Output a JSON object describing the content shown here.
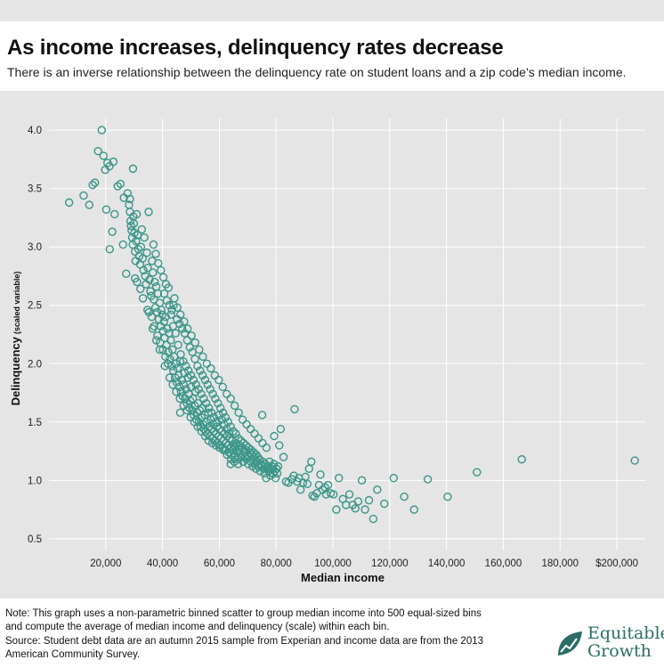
{
  "header": {
    "title": "As income increases, delinquency rates decrease",
    "subtitle": "There is an inverse relationship between the delinquency rate on student loans and a zip code’s median income."
  },
  "footer": {
    "note1": "Note: This graph uses a non-parametric binned scatter to group median income into 500 equal-sized bins and compute the average of median income and delinquency (scale) within each bin.",
    "note2": "Source: Student debt data are an autumn 2015 sample from Experian and income data are from the 2013 American Community Survey.",
    "logo_line1": "Equitable",
    "logo_line2": "Growth",
    "logo_color": "#2c6e66",
    "logo_icon": "growth-leaf-icon"
  },
  "chart_data": {
    "type": "scatter",
    "xlabel": "Median income",
    "ylabel": "Delinquency",
    "ylabel_suffix": "(scaled variable)",
    "xlim": [
      0,
      210000
    ],
    "ylim": [
      0.4,
      4.1
    ],
    "x_ticks": [
      20000,
      40000,
      60000,
      80000,
      100000,
      120000,
      140000,
      160000,
      180000,
      200000
    ],
    "x_tick_labels": [
      "20,000",
      "40,000",
      "60,000",
      "80,000",
      "100,000",
      "120,000",
      "140,000",
      "160,000",
      "180,000",
      "$200,000"
    ],
    "y_ticks": [
      0.5,
      1.0,
      1.5,
      2.0,
      2.5,
      3.0,
      3.5,
      4.0
    ],
    "y_tick_labels": [
      "0.5",
      "1.0",
      "1.5",
      "2.0",
      "2.5",
      "3.0",
      "3.5",
      "4.0"
    ],
    "grid": true,
    "marker_color": "#3a9688",
    "points": [
      [
        7100,
        3.38
      ],
      [
        12200,
        3.44
      ],
      [
        14200,
        3.36
      ],
      [
        15400,
        3.53
      ],
      [
        16200,
        3.55
      ],
      [
        17300,
        3.82
      ],
      [
        18600,
        4.0
      ],
      [
        19200,
        3.78
      ],
      [
        19800,
        3.66
      ],
      [
        20600,
        3.72
      ],
      [
        21300,
        3.69
      ],
      [
        22700,
        3.73
      ],
      [
        24200,
        3.52
      ],
      [
        25200,
        3.54
      ],
      [
        26400,
        3.42
      ],
      [
        27700,
        3.46
      ],
      [
        28500,
        3.41
      ],
      [
        29600,
        3.67
      ],
      [
        20200,
        3.32
      ],
      [
        21400,
        2.98
      ],
      [
        22300,
        3.13
      ],
      [
        23100,
        3.28
      ],
      [
        26100,
        3.02
      ],
      [
        27200,
        2.77
      ],
      [
        28200,
        3.36
      ],
      [
        28500,
        3.3
      ],
      [
        28700,
        3.22
      ],
      [
        28900,
        3.18
      ],
      [
        29100,
        3.14
      ],
      [
        29300,
        3.08
      ],
      [
        29500,
        3.02
      ],
      [
        29700,
        3.26
      ],
      [
        29900,
        3.2
      ],
      [
        30100,
        3.12
      ],
      [
        30300,
        2.96
      ],
      [
        30500,
        2.88
      ],
      [
        30700,
        3.05
      ],
      [
        30900,
        3.28
      ],
      [
        31200,
        3.1
      ],
      [
        31500,
        2.98
      ],
      [
        31800,
        2.92
      ],
      [
        32100,
        2.85
      ],
      [
        32400,
        3.0
      ],
      [
        32700,
        3.15
      ],
      [
        33000,
        2.9
      ],
      [
        33300,
        2.8
      ],
      [
        33600,
        3.08
      ],
      [
        33900,
        2.75
      ],
      [
        34200,
        2.68
      ],
      [
        34500,
        2.95
      ],
      [
        34800,
        2.82
      ],
      [
        35100,
        3.3
      ],
      [
        35400,
        2.72
      ],
      [
        35700,
        2.62
      ],
      [
        36000,
        2.58
      ],
      [
        36300,
        2.88
      ],
      [
        36600,
        2.78
      ],
      [
        36900,
        2.55
      ],
      [
        37200,
        2.7
      ],
      [
        37500,
        2.48
      ],
      [
        37800,
        2.66
      ],
      [
        38100,
        2.44
      ],
      [
        38400,
        2.6
      ],
      [
        38700,
        2.38
      ],
      [
        39000,
        2.52
      ],
      [
        39300,
        2.32
      ],
      [
        39600,
        2.46
      ],
      [
        39900,
        2.42
      ],
      [
        40200,
        2.28
      ],
      [
        40500,
        2.36
      ],
      [
        40800,
        2.22
      ],
      [
        41100,
        2.4
      ],
      [
        41400,
        2.16
      ],
      [
        41700,
        2.3
      ],
      [
        42000,
        2.1
      ],
      [
        42300,
        2.26
      ],
      [
        42600,
        2.04
      ],
      [
        42900,
        2.2
      ],
      [
        43200,
        1.98
      ],
      [
        43500,
        2.12
      ],
      [
        43800,
        1.94
      ],
      [
        44100,
        2.06
      ],
      [
        44400,
        1.88
      ],
      [
        44700,
        2.0
      ],
      [
        45000,
        1.84
      ],
      [
        45300,
        1.96
      ],
      [
        45600,
        1.9
      ],
      [
        45900,
        1.8
      ],
      [
        46200,
        2.02
      ],
      [
        46500,
        1.76
      ],
      [
        46800,
        1.86
      ],
      [
        47100,
        1.72
      ],
      [
        47400,
        1.82
      ],
      [
        47700,
        1.92
      ],
      [
        48000,
        1.7
      ],
      [
        48300,
        1.78
      ],
      [
        48600,
        1.66
      ],
      [
        48900,
        1.88
      ],
      [
        49200,
        1.74
      ],
      [
        49500,
        1.62
      ],
      [
        49800,
        1.68
      ],
      [
        50100,
        1.8
      ],
      [
        50400,
        1.6
      ],
      [
        50700,
        1.7
      ],
      [
        51000,
        1.56
      ],
      [
        51300,
        1.64
      ],
      [
        51600,
        1.76
      ],
      [
        51900,
        1.52
      ],
      [
        52200,
        1.58
      ],
      [
        52500,
        1.66
      ],
      [
        52800,
        1.5
      ],
      [
        53100,
        1.6
      ],
      [
        53400,
        1.46
      ],
      [
        53700,
        1.54
      ],
      [
        54000,
        1.62
      ],
      [
        54300,
        1.48
      ],
      [
        54600,
        1.44
      ],
      [
        54900,
        1.56
      ],
      [
        55200,
        1.42
      ],
      [
        55500,
        1.5
      ],
      [
        55800,
        1.4
      ],
      [
        56100,
        1.58
      ],
      [
        56400,
        1.46
      ],
      [
        56700,
        1.38
      ],
      [
        57000,
        1.52
      ],
      [
        57300,
        1.44
      ],
      [
        57600,
        1.36
      ],
      [
        57900,
        1.48
      ],
      [
        58200,
        1.42
      ],
      [
        58500,
        1.34
      ],
      [
        58800,
        1.4
      ],
      [
        59100,
        1.46
      ],
      [
        59400,
        1.32
      ],
      [
        59700,
        1.38
      ],
      [
        60000,
        1.44
      ],
      [
        60300,
        1.3
      ],
      [
        60600,
        1.36
      ],
      [
        60900,
        1.42
      ],
      [
        61200,
        1.28
      ],
      [
        61500,
        1.34
      ],
      [
        61800,
        1.4
      ],
      [
        62100,
        1.26
      ],
      [
        62400,
        1.32
      ],
      [
        62700,
        1.38
      ],
      [
        63000,
        1.3
      ],
      [
        63300,
        1.24
      ],
      [
        63600,
        1.36
      ],
      [
        63900,
        1.28
      ],
      [
        64200,
        1.22
      ],
      [
        64500,
        1.34
      ],
      [
        64800,
        1.26
      ],
      [
        65100,
        1.3
      ],
      [
        65400,
        1.2
      ],
      [
        65700,
        1.28
      ],
      [
        66000,
        1.32
      ],
      [
        66300,
        1.24
      ],
      [
        66600,
        1.18
      ],
      [
        66900,
        1.26
      ],
      [
        67200,
        1.3
      ],
      [
        67500,
        1.22
      ],
      [
        67800,
        1.2
      ],
      [
        68100,
        1.28
      ],
      [
        68400,
        1.16
      ],
      [
        68700,
        1.24
      ],
      [
        69000,
        1.2
      ],
      [
        69300,
        1.26
      ],
      [
        69600,
        1.18
      ],
      [
        69900,
        1.22
      ],
      [
        70200,
        1.14
      ],
      [
        70500,
        1.2
      ],
      [
        70800,
        1.24
      ],
      [
        71100,
        1.16
      ],
      [
        71400,
        1.22
      ],
      [
        71700,
        1.12
      ],
      [
        72000,
        1.18
      ],
      [
        72300,
        1.2
      ],
      [
        72600,
        1.14
      ],
      [
        72900,
        1.1
      ],
      [
        73200,
        1.16
      ],
      [
        73500,
        1.2
      ],
      [
        73800,
        1.12
      ],
      [
        74100,
        1.18
      ],
      [
        74400,
        1.08
      ],
      [
        74700,
        1.14
      ],
      [
        75000,
        1.12
      ],
      [
        75300,
        1.16
      ],
      [
        75600,
        1.1
      ],
      [
        75900,
        1.06
      ],
      [
        76200,
        1.14
      ],
      [
        76500,
        1.02
      ],
      [
        76800,
        1.1
      ],
      [
        77100,
        1.12
      ],
      [
        77400,
        1.08
      ],
      [
        77700,
        1.16
      ],
      [
        78000,
        1.04
      ],
      [
        78300,
        1.1
      ],
      [
        78600,
        1.12
      ],
      [
        78900,
        1.06
      ],
      [
        79200,
        1.14
      ],
      [
        79500,
        1.08
      ],
      [
        79800,
        1.02
      ],
      [
        80100,
        1.1
      ],
      [
        80400,
        1.06
      ],
      [
        80700,
        1.12
      ],
      [
        30300,
        2.73
      ],
      [
        31000,
        2.7
      ],
      [
        32200,
        2.64
      ],
      [
        33100,
        2.56
      ],
      [
        34700,
        2.46
      ],
      [
        36200,
        2.4
      ],
      [
        37000,
        2.32
      ],
      [
        38200,
        2.24
      ],
      [
        39100,
        2.18
      ],
      [
        40100,
        2.12
      ],
      [
        41000,
        2.06
      ],
      [
        41900,
        2.0
      ],
      [
        43000,
        2.42
      ],
      [
        43700,
        2.32
      ],
      [
        44600,
        2.26
      ],
      [
        45500,
        2.16
      ],
      [
        46400,
        2.08
      ],
      [
        47300,
        2.02
      ],
      [
        48200,
        1.98
      ],
      [
        49100,
        1.94
      ],
      [
        50000,
        1.9
      ],
      [
        50900,
        1.86
      ],
      [
        51800,
        1.82
      ],
      [
        52700,
        1.78
      ],
      [
        53600,
        1.74
      ],
      [
        54500,
        1.7
      ],
      [
        55400,
        1.66
      ],
      [
        56300,
        1.62
      ],
      [
        57200,
        1.58
      ],
      [
        58100,
        1.54
      ],
      [
        59000,
        1.5
      ],
      [
        59900,
        1.56
      ],
      [
        60800,
        1.52
      ],
      [
        61700,
        1.48
      ],
      [
        62600,
        1.44
      ],
      [
        63500,
        1.4
      ],
      [
        40600,
        2.6
      ],
      [
        41500,
        2.54
      ],
      [
        42400,
        2.5
      ],
      [
        43300,
        2.46
      ],
      [
        44200,
        2.56
      ],
      [
        45100,
        2.38
      ],
      [
        46000,
        2.34
      ],
      [
        46900,
        2.3
      ],
      [
        47800,
        2.26
      ],
      [
        48700,
        2.2
      ],
      [
        49600,
        2.14
      ],
      [
        50500,
        2.1
      ],
      [
        51400,
        2.04
      ],
      [
        52300,
        1.98
      ],
      [
        53200,
        1.94
      ],
      [
        54100,
        1.9
      ],
      [
        55000,
        1.86
      ],
      [
        55900,
        1.82
      ],
      [
        56800,
        1.78
      ],
      [
        57700,
        1.74
      ],
      [
        58600,
        1.7
      ],
      [
        59500,
        1.66
      ],
      [
        60400,
        1.62
      ],
      [
        61300,
        1.58
      ],
      [
        62200,
        1.54
      ],
      [
        63100,
        1.5
      ],
      [
        64000,
        1.46
      ],
      [
        64900,
        1.42
      ],
      [
        65800,
        1.4
      ],
      [
        66700,
        1.36
      ],
      [
        67600,
        1.34
      ],
      [
        68500,
        1.32
      ],
      [
        69400,
        1.3
      ],
      [
        70300,
        1.28
      ],
      [
        71200,
        1.26
      ],
      [
        72100,
        1.24
      ],
      [
        73000,
        1.22
      ],
      [
        36800,
        3.02
      ],
      [
        37600,
        2.94
      ],
      [
        38500,
        2.86
      ],
      [
        39400,
        2.8
      ],
      [
        40300,
        2.74
      ],
      [
        41200,
        2.68
      ],
      [
        42100,
        2.65
      ],
      [
        43900,
        2.5
      ],
      [
        45200,
        2.48
      ],
      [
        46300,
        2.42
      ],
      [
        47600,
        2.36
      ],
      [
        48800,
        2.3
      ],
      [
        50200,
        2.24
      ],
      [
        51500,
        2.18
      ],
      [
        52900,
        2.12
      ],
      [
        54200,
        2.06
      ],
      [
        55600,
        2.0
      ],
      [
        57000,
        1.96
      ],
      [
        58400,
        1.9
      ],
      [
        59800,
        1.86
      ],
      [
        61200,
        1.8
      ],
      [
        62600,
        1.74
      ],
      [
        64000,
        1.7
      ],
      [
        65400,
        1.64
      ],
      [
        66800,
        1.58
      ],
      [
        68200,
        1.52
      ],
      [
        69600,
        1.48
      ],
      [
        71000,
        1.44
      ],
      [
        72400,
        1.4
      ],
      [
        73800,
        1.36
      ],
      [
        75200,
        1.32
      ],
      [
        76600,
        1.28
      ],
      [
        35200,
        2.44
      ],
      [
        36500,
        2.3
      ],
      [
        37800,
        2.2
      ],
      [
        39000,
        2.12
      ],
      [
        40800,
        1.98
      ],
      [
        42500,
        1.88
      ],
      [
        43600,
        1.82
      ],
      [
        44800,
        1.76
      ],
      [
        46100,
        1.7
      ],
      [
        47400,
        1.64
      ],
      [
        48600,
        1.6
      ],
      [
        49900,
        1.54
      ],
      [
        51200,
        1.5
      ],
      [
        52400,
        1.46
      ],
      [
        53700,
        1.42
      ],
      [
        55000,
        1.38
      ],
      [
        56200,
        1.34
      ],
      [
        57500,
        1.32
      ],
      [
        58800,
        1.3
      ],
      [
        60100,
        1.28
      ],
      [
        61400,
        1.26
      ],
      [
        62700,
        1.22
      ],
      [
        64100,
        1.18
      ],
      [
        65300,
        1.16
      ],
      [
        66600,
        1.14
      ],
      [
        46200,
        1.58
      ],
      [
        64000,
        1.14
      ],
      [
        75100,
        1.56
      ],
      [
        81600,
        1.44
      ],
      [
        86500,
        1.61
      ],
      [
        79300,
        1.38
      ],
      [
        81100,
        1.3
      ],
      [
        82600,
        1.2
      ],
      [
        83500,
        0.99
      ],
      [
        84300,
        0.98
      ],
      [
        85500,
        1.01
      ],
      [
        86200,
        1.04
      ],
      [
        87400,
        0.99
      ],
      [
        88000,
        1.02
      ],
      [
        88600,
        0.92
      ],
      [
        89500,
        0.98
      ],
      [
        90300,
        1.03
      ],
      [
        91000,
        0.97
      ],
      [
        91600,
        1.1
      ],
      [
        92400,
        1.16
      ],
      [
        92800,
        0.87
      ],
      [
        93500,
        0.86
      ],
      [
        94300,
        0.89
      ],
      [
        95100,
        0.96
      ],
      [
        95600,
        1.05
      ],
      [
        96400,
        0.92
      ],
      [
        97200,
        0.94
      ],
      [
        97600,
        0.88
      ],
      [
        98300,
        0.96
      ],
      [
        99200,
        0.89
      ],
      [
        100200,
        0.88
      ],
      [
        101200,
        0.75
      ],
      [
        102100,
        1.02
      ],
      [
        103500,
        0.84
      ],
      [
        104600,
        0.79
      ],
      [
        105800,
        0.88
      ],
      [
        107000,
        0.79
      ],
      [
        107900,
        0.76
      ],
      [
        108900,
        0.82
      ],
      [
        110200,
        1.0
      ],
      [
        111300,
        0.75
      ],
      [
        112700,
        0.83
      ],
      [
        114200,
        0.67
      ],
      [
        115600,
        0.92
      ],
      [
        118100,
        0.8
      ],
      [
        121400,
        1.02
      ],
      [
        125100,
        0.86
      ],
      [
        128600,
        0.75
      ],
      [
        133400,
        1.01
      ],
      [
        140400,
        0.86
      ],
      [
        150700,
        1.07
      ],
      [
        166500,
        1.18
      ],
      [
        206300,
        1.17
      ]
    ]
  }
}
